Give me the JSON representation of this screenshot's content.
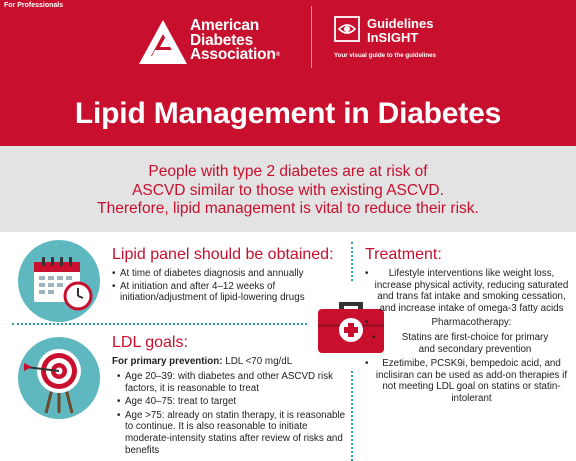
{
  "header": {
    "for_professionals": "For Professionals",
    "ada_line1": "American",
    "ada_line2": "Diabetes",
    "ada_line3": "Association",
    "gi_line1": "Guidelines",
    "gi_line2": "InSIGHT",
    "gi_tagline": "Your visual guide to the guidelines",
    "title": "Lipid Management in Diabetes"
  },
  "banner": {
    "line1": "People with type 2 diabetes are at risk of",
    "line2": "ASCVD similar to those with existing ASCVD.",
    "line3": "Therefore, lipid management is vital to reduce their risk."
  },
  "lipid_panel": {
    "title": "Lipid panel should be obtained:",
    "items": [
      "At time of diabetes diagnosis and annually",
      "At initiation and after 4–12 weeks of initiation/adjustment of lipid-lowering drugs"
    ]
  },
  "ldl": {
    "title": "LDL goals:",
    "primary_label": "For primary prevention:",
    "primary_value": "LDL <70 mg/dL",
    "items": [
      "Age 20–39: with diabetes and other ASCVD risk factors, it is reasonable to treat",
      "Age 40–75: treat to target",
      "Age >75: already on statin therapy, it is reasonable to continue. It is also reasonable to initiate moderate-intensity statins after review of risks and benefits"
    ]
  },
  "treatment": {
    "title": "Treatment:",
    "lifestyle": "Lifestyle interventions like weight loss, increase physical activity, reducing saturated and trans fat intake and smoking cessation, and increase intake of omega-3 fatty acids",
    "pharma": "Pharmacotherapy:",
    "statins_a": "Statins are first-choice for primary",
    "statins_b": "and secondary prevention",
    "addon": "Ezetimibe, PCSK9i, bempedoic acid, and inclisiran can be used as add-on therapies if not meeting LDL goal on statins or statin-intolerant"
  },
  "colors": {
    "brand_red": "#c8102e",
    "teal": "#5fb8c0",
    "banner_gray": "#e3e3e3"
  },
  "icons": [
    "ada-triangle-logo",
    "eye-icon",
    "calendar-clock-icon",
    "target-arrow-icon",
    "medical-kit-icon"
  ]
}
